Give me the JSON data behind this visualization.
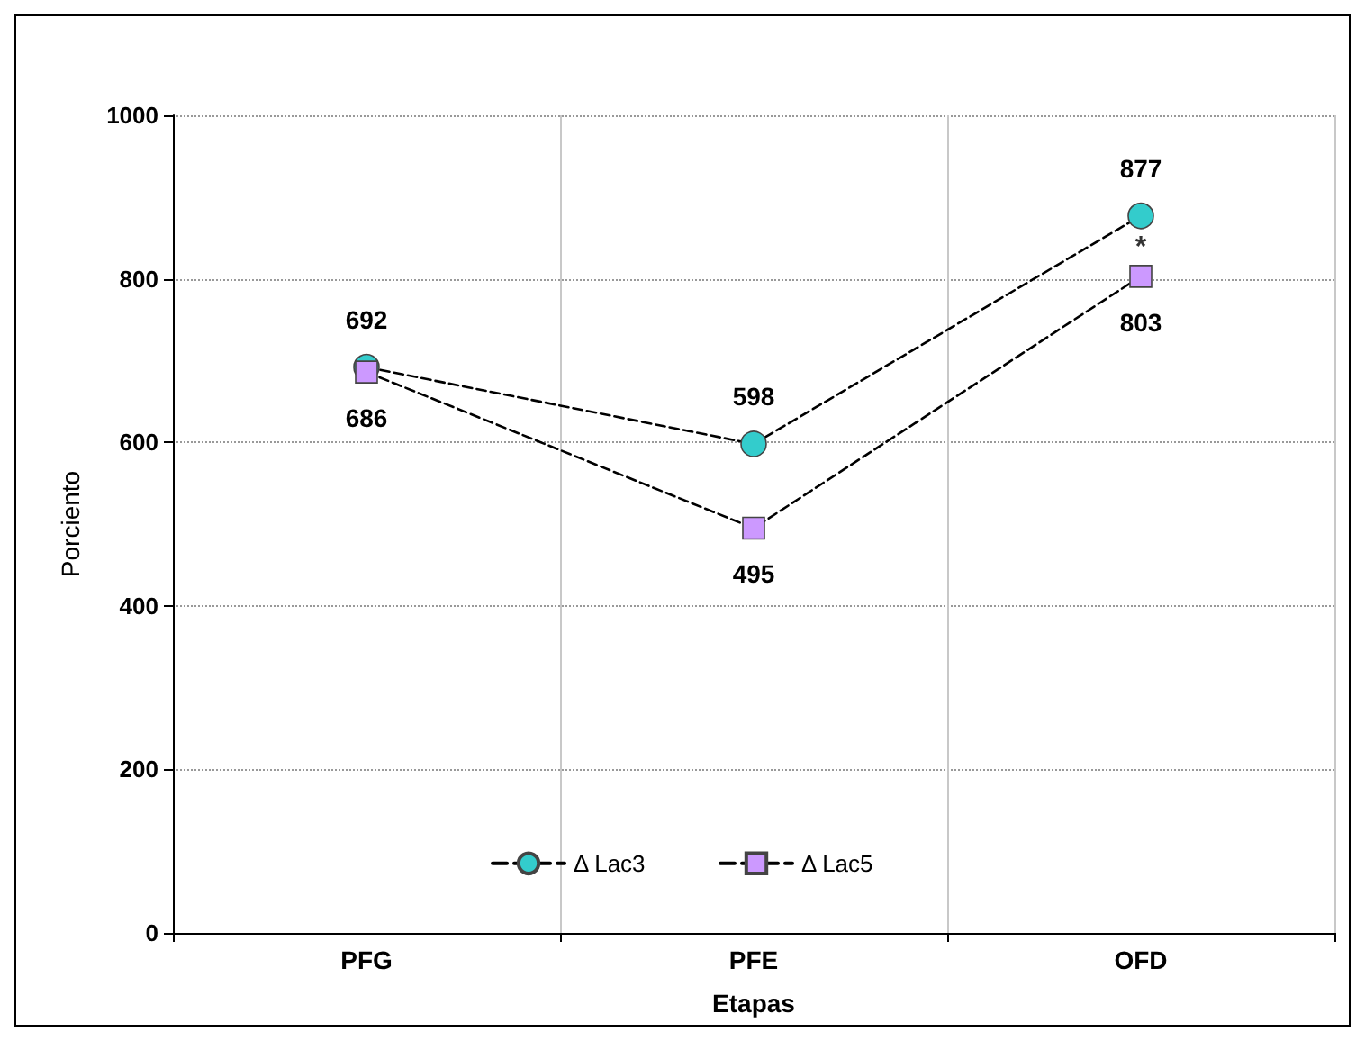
{
  "chart_data": {
    "type": "line",
    "xlabel": "Etapas",
    "ylabel": "Porciento",
    "categories": [
      "PFG",
      "PFE",
      "OFD"
    ],
    "series": [
      {
        "name": "Δ Lac3",
        "color": "#33cccc",
        "marker": "circle",
        "values": [
          692,
          598,
          877
        ]
      },
      {
        "name": "Δ Lac5",
        "color": "#cc99ff",
        "marker": "square",
        "values": [
          686,
          495,
          803
        ]
      }
    ],
    "ylim": [
      0,
      1000
    ],
    "yticks": [
      0,
      200,
      400,
      600,
      800,
      1000
    ],
    "grid": true,
    "legend": "bottom",
    "line_style": "dashed",
    "data_labels": true,
    "annotations": [
      {
        "text": "*",
        "x": "OFD",
        "y": 803
      }
    ]
  }
}
